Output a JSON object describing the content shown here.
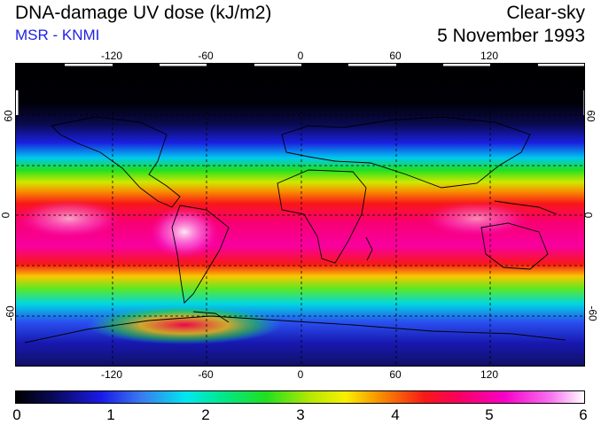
{
  "header": {
    "title": "DNA-damage UV dose (kJ/m2)",
    "subtitle": "MSR - KNMI",
    "sky_condition": "Clear-sky",
    "date": "5 November 1993"
  },
  "map": {
    "longitude_ticks": [
      "-120",
      "-60",
      "0",
      "60",
      "120"
    ],
    "latitude_ticks_left": [
      "60",
      "0",
      "-60"
    ],
    "latitude_ticks_right": [
      "60",
      "0",
      "-60"
    ]
  },
  "colorbar": {
    "labels": [
      "0",
      "1",
      "2",
      "3",
      "4",
      "5",
      "6"
    ],
    "min": 0,
    "max": 6
  },
  "colors": {
    "subtitle_blue": "#1f22e0"
  }
}
